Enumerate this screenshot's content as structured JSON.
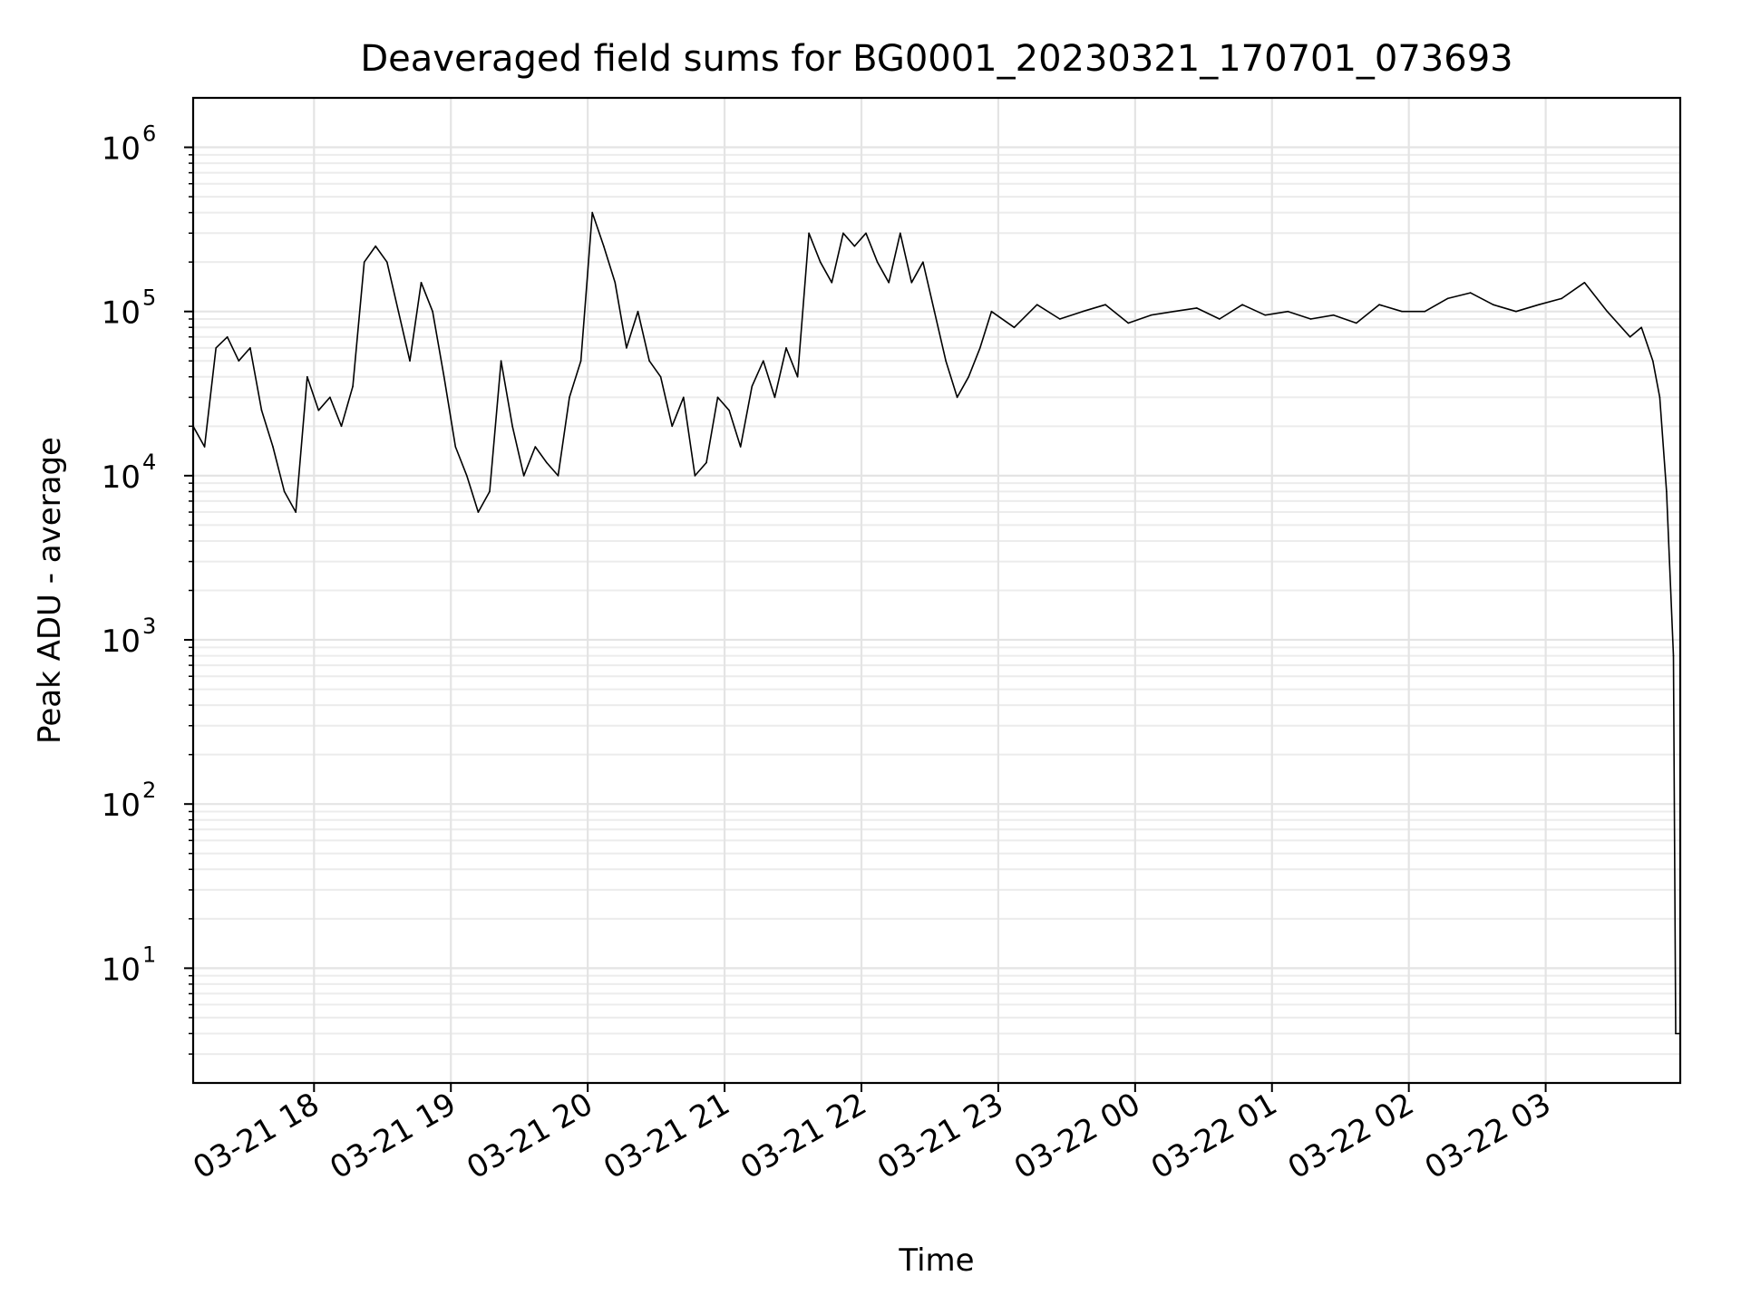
{
  "chart_data": {
    "type": "line",
    "title": "Deaveraged field sums for BG0001_20230321_170701_073693",
    "xlabel": "Time",
    "ylabel": "Peak ADU - average",
    "yscale": "log",
    "xlim": [
      "2023-03-21 17:07",
      "2023-03-22 03:59"
    ],
    "ylim": [
      2,
      2000000
    ],
    "grid": "both (major and minor)",
    "legend": "none",
    "line_color": "#000000",
    "xticks": [
      {
        "t": "2023-03-21 18:00",
        "label": "03-21 18"
      },
      {
        "t": "2023-03-21 19:00",
        "label": "03-21 19"
      },
      {
        "t": "2023-03-21 20:00",
        "label": "03-21 20"
      },
      {
        "t": "2023-03-21 21:00",
        "label": "03-21 21"
      },
      {
        "t": "2023-03-21 22:00",
        "label": "03-21 22"
      },
      {
        "t": "2023-03-21 23:00",
        "label": "03-21 23"
      },
      {
        "t": "2023-03-22 00:00",
        "label": "03-22 00"
      },
      {
        "t": "2023-03-22 01:00",
        "label": "03-22 01"
      },
      {
        "t": "2023-03-22 02:00",
        "label": "03-22 02"
      },
      {
        "t": "2023-03-22 03:00",
        "label": "03-22 03"
      }
    ],
    "yticks": [
      {
        "value": 10,
        "base": "10",
        "exp": "1"
      },
      {
        "value": 100,
        "base": "10",
        "exp": "2"
      },
      {
        "value": 1000,
        "base": "10",
        "exp": "3"
      },
      {
        "value": 10000,
        "base": "10",
        "exp": "4"
      },
      {
        "value": 100000,
        "base": "10",
        "exp": "5"
      },
      {
        "value": 1000000,
        "base": "10",
        "exp": "6"
      }
    ],
    "series": [
      {
        "x": [
          "2023-03-21 17:07",
          "2023-03-21 17:12",
          "2023-03-21 17:17",
          "2023-03-21 17:22",
          "2023-03-21 17:27",
          "2023-03-21 17:32",
          "2023-03-21 17:37",
          "2023-03-21 17:42",
          "2023-03-21 17:47",
          "2023-03-21 17:52",
          "2023-03-21 17:57",
          "2023-03-21 18:02",
          "2023-03-21 18:07",
          "2023-03-21 18:12",
          "2023-03-21 18:17",
          "2023-03-21 18:22",
          "2023-03-21 18:27",
          "2023-03-21 18:32",
          "2023-03-21 18:37",
          "2023-03-21 18:42",
          "2023-03-21 18:47",
          "2023-03-21 18:52",
          "2023-03-21 18:57",
          "2023-03-21 19:02",
          "2023-03-21 19:07",
          "2023-03-21 19:12",
          "2023-03-21 19:17",
          "2023-03-21 19:22",
          "2023-03-21 19:27",
          "2023-03-21 19:32",
          "2023-03-21 19:37",
          "2023-03-21 19:42",
          "2023-03-21 19:47",
          "2023-03-21 19:52",
          "2023-03-21 19:57",
          "2023-03-21 20:02",
          "2023-03-21 20:07",
          "2023-03-21 20:12",
          "2023-03-21 20:17",
          "2023-03-21 20:22",
          "2023-03-21 20:27",
          "2023-03-21 20:32",
          "2023-03-21 20:37",
          "2023-03-21 20:42",
          "2023-03-21 20:47",
          "2023-03-21 20:52",
          "2023-03-21 20:57",
          "2023-03-21 21:02",
          "2023-03-21 21:07",
          "2023-03-21 21:12",
          "2023-03-21 21:17",
          "2023-03-21 21:22",
          "2023-03-21 21:27",
          "2023-03-21 21:32",
          "2023-03-21 21:37",
          "2023-03-21 21:42",
          "2023-03-21 21:47",
          "2023-03-21 21:52",
          "2023-03-21 21:57",
          "2023-03-21 22:02",
          "2023-03-21 22:07",
          "2023-03-21 22:12",
          "2023-03-21 22:17",
          "2023-03-21 22:22",
          "2023-03-21 22:27",
          "2023-03-21 22:32",
          "2023-03-21 22:37",
          "2023-03-21 22:42",
          "2023-03-21 22:47",
          "2023-03-21 22:52",
          "2023-03-21 22:57",
          "2023-03-21 23:07",
          "2023-03-21 23:17",
          "2023-03-21 23:27",
          "2023-03-21 23:37",
          "2023-03-21 23:47",
          "2023-03-21 23:57",
          "2023-03-22 00:07",
          "2023-03-22 00:17",
          "2023-03-22 00:27",
          "2023-03-22 00:37",
          "2023-03-22 00:47",
          "2023-03-22 00:57",
          "2023-03-22 01:07",
          "2023-03-22 01:17",
          "2023-03-22 01:27",
          "2023-03-22 01:37",
          "2023-03-22 01:47",
          "2023-03-22 01:57",
          "2023-03-22 02:07",
          "2023-03-22 02:17",
          "2023-03-22 02:27",
          "2023-03-22 02:37",
          "2023-03-22 02:47",
          "2023-03-22 02:57",
          "2023-03-22 03:07",
          "2023-03-22 03:17",
          "2023-03-22 03:27",
          "2023-03-22 03:37",
          "2023-03-22 03:42",
          "2023-03-22 03:47",
          "2023-03-22 03:50",
          "2023-03-22 03:53",
          "2023-03-22 03:56",
          "2023-03-22 03:57",
          "2023-03-22 03:58",
          "2023-03-22 03:59"
        ],
        "y": [
          20000,
          15000,
          60000,
          70000,
          50000,
          60000,
          25000,
          15000,
          8000,
          6000,
          40000,
          25000,
          30000,
          20000,
          35000,
          200000,
          250000,
          200000,
          100000,
          50000,
          150000,
          100000,
          40000,
          15000,
          10000,
          6000,
          8000,
          50000,
          20000,
          10000,
          15000,
          12000,
          10000,
          30000,
          50000,
          400000,
          250000,
          150000,
          60000,
          100000,
          50000,
          40000,
          20000,
          30000,
          10000,
          12000,
          30000,
          25000,
          15000,
          35000,
          50000,
          30000,
          60000,
          40000,
          300000,
          200000,
          150000,
          300000,
          250000,
          300000,
          200000,
          150000,
          300000,
          150000,
          200000,
          100000,
          50000,
          30000,
          40000,
          60000,
          100000,
          80000,
          110000,
          90000,
          100000,
          110000,
          85000,
          95000,
          100000,
          105000,
          90000,
          110000,
          95000,
          100000,
          90000,
          95000,
          85000,
          110000,
          100000,
          100000,
          120000,
          130000,
          110000,
          100000,
          110000,
          120000,
          150000,
          100000,
          70000,
          80000,
          50000,
          30000,
          8000,
          800,
          4,
          4,
          4
        ]
      }
    ]
  }
}
